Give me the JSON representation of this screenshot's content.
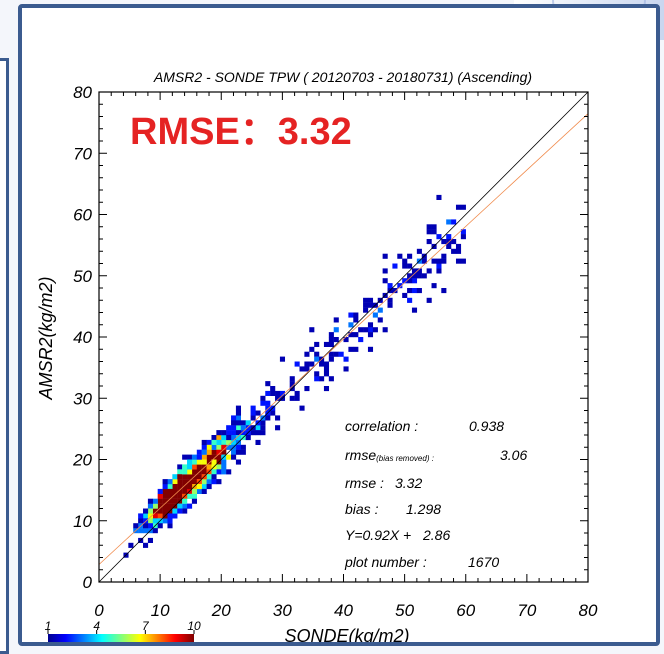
{
  "chart_data": {
    "type": "heatmap",
    "title": "AMSR2 - SONDE TPW ( 20120703 - 20180731) (Ascending)",
    "xlabel": "SONDE(kg/m2)",
    "ylabel": "AMSR2(kg/m2)",
    "xlim": [
      0,
      80
    ],
    "ylim": [
      0,
      80
    ],
    "x_ticks": [
      "0",
      "10",
      "20",
      "30",
      "40",
      "50",
      "60",
      "70",
      "80"
    ],
    "y_ticks": [
      "0",
      "10",
      "20",
      "30",
      "40",
      "50",
      "60",
      "70",
      "80"
    ],
    "highlight": "RMSE：3.32",
    "stats": {
      "correlation_label": "correlation :",
      "correlation_value": "0.938",
      "rmse_br_label": "rmse",
      "rmse_br_sub": "(bias removed) :",
      "rmse_br_value": "3.06",
      "rmse_label": "rmse :",
      "rmse_value": "3.32",
      "bias_label": "bias :",
      "bias_value": "1.298",
      "fit_label": "Y=0.92X +",
      "fit_value": "2.86",
      "count_label": "plot number :",
      "count_value": "1670"
    },
    "fit_line": {
      "slope": 0.92,
      "intercept": 2.86,
      "color": "#f08a4b"
    },
    "one_to_one_line": {
      "slope": 1,
      "intercept": 0,
      "color": "#000000"
    },
    "colorbar": {
      "min": 1,
      "max": 10,
      "ticks": [
        "1",
        "4",
        "7",
        "10"
      ]
    },
    "point_count": 1670,
    "grid": false
  }
}
